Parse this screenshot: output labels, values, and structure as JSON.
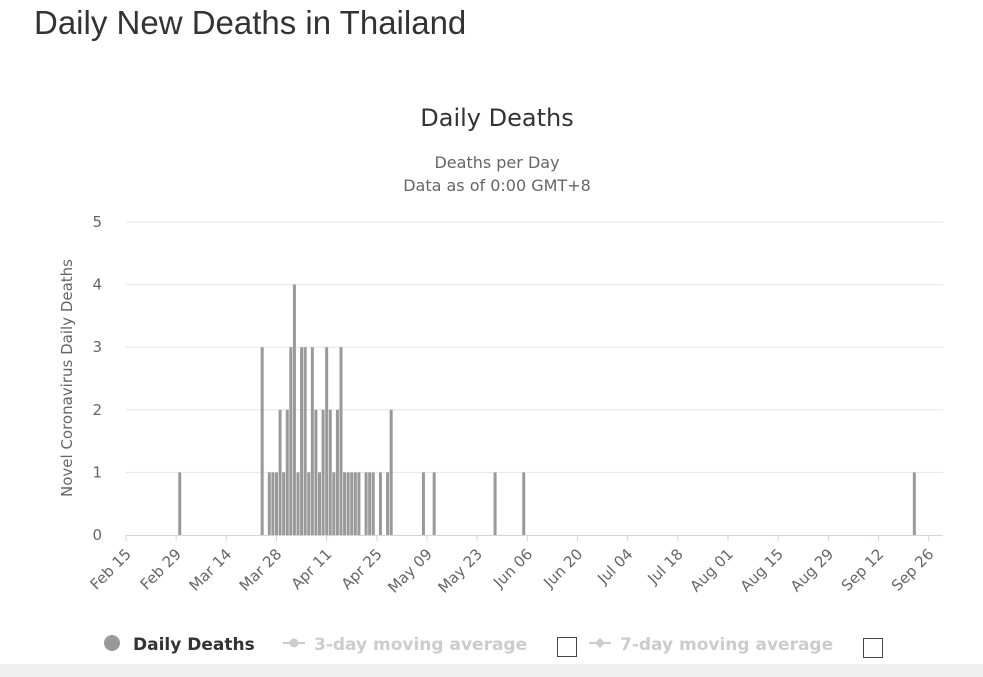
{
  "page": {
    "heading": "Daily New Deaths in Thailand"
  },
  "chart_data": {
    "type": "bar",
    "title": "Daily Deaths",
    "subtitle": [
      "Deaths per Day",
      "Data as of 0:00 GMT+8"
    ],
    "ylabel": "Novel Coronavirus Daily Deaths",
    "xlabel": "",
    "ylim": [
      0,
      5
    ],
    "yticks": [
      0,
      1,
      2,
      3,
      4,
      5
    ],
    "x_start": "2020-02-15",
    "x_end": "2020-09-30",
    "xticks": [
      "Feb 15",
      "Feb 29",
      "Mar 14",
      "Mar 28",
      "Apr 11",
      "Apr 25",
      "May 09",
      "May 23",
      "Jun 06",
      "Jun 20",
      "Jul 04",
      "Jul 18",
      "Aug 01",
      "Aug 15",
      "Aug 29",
      "Sep 12",
      "Sep 26"
    ],
    "grid": true,
    "legend_position": "bottom",
    "colors": {
      "bar": "#999999",
      "grid": "#e6e6e6",
      "axis": "#ccd6eb",
      "legend_inactive": "#cccccc"
    },
    "series": [
      {
        "name": "Daily Deaths",
        "x": [
          "2020-03-01",
          "2020-03-24",
          "2020-03-26",
          "2020-03-27",
          "2020-03-28",
          "2020-03-29",
          "2020-03-30",
          "2020-03-31",
          "2020-04-01",
          "2020-04-02",
          "2020-04-03",
          "2020-04-04",
          "2020-04-05",
          "2020-04-06",
          "2020-04-07",
          "2020-04-08",
          "2020-04-09",
          "2020-04-10",
          "2020-04-11",
          "2020-04-12",
          "2020-04-13",
          "2020-04-14",
          "2020-04-15",
          "2020-04-16",
          "2020-04-17",
          "2020-04-18",
          "2020-04-19",
          "2020-04-20",
          "2020-04-22",
          "2020-04-23",
          "2020-04-24",
          "2020-04-26",
          "2020-04-28",
          "2020-04-29",
          "2020-05-08",
          "2020-05-11",
          "2020-05-28",
          "2020-06-05",
          "2020-09-22"
        ],
        "values": [
          1,
          3,
          1,
          1,
          1,
          2,
          1,
          2,
          3,
          4,
          1,
          3,
          3,
          1,
          3,
          2,
          1,
          2,
          3,
          2,
          1,
          2,
          3,
          1,
          1,
          1,
          1,
          1,
          1,
          1,
          1,
          1,
          1,
          2,
          1,
          1,
          1,
          1,
          1
        ]
      },
      {
        "name": "3-day moving average",
        "values": []
      },
      {
        "name": "7-day moving average",
        "values": []
      }
    ]
  }
}
